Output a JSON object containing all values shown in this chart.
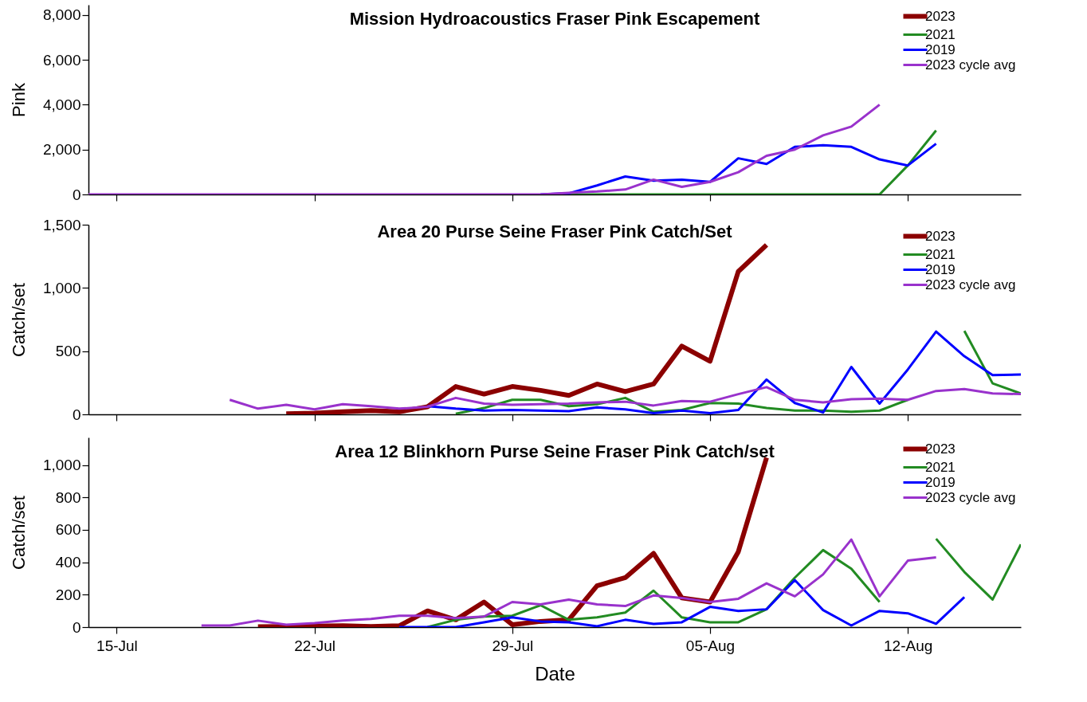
{
  "chart_data": [
    {
      "type": "line",
      "title": "Mission Hydroacoustics Fraser Pink Escapement",
      "ylabel": "Pink",
      "legend": "top right",
      "grid": false,
      "tick_labels": "y",
      "x": [
        "--07-14",
        "--07-15",
        "--07-16",
        "--07-17",
        "--07-18",
        "--07-19",
        "--07-20",
        "--07-21",
        "--07-22",
        "--07-23",
        "--07-24",
        "--07-25",
        "--07-26",
        "--07-27",
        "--07-28",
        "--07-29",
        "--07-30",
        "--07-31",
        "--08-01",
        "--08-02",
        "--08-03",
        "--08-04",
        "--08-05",
        "--08-06",
        "--08-07",
        "--08-08",
        "--08-09",
        "--08-10",
        "--08-11",
        "--08-12",
        "--08-13"
      ],
      "xlim": [
        "--07-14",
        "--08-16"
      ],
      "xticks": [
        {
          "value": "--07-15",
          "label": null
        },
        {
          "value": "--07-22",
          "label": null
        },
        {
          "value": "--07-29",
          "label": null
        },
        {
          "value": "--08-05",
          "label": null
        },
        {
          "value": "--08-12",
          "label": null
        }
      ],
      "ylim": [
        0,
        8450
      ],
      "yticks": [
        {
          "value": 0,
          "label": "0"
        },
        {
          "value": 2000,
          "label": "2,000"
        },
        {
          "value": 4000,
          "label": "4,000"
        },
        {
          "value": 6000,
          "label": "6,000"
        },
        {
          "value": 8000,
          "label": "8,000"
        }
      ],
      "series": [
        {
          "name": "2023",
          "color": "#8b0000",
          "values": [
            null,
            null,
            null,
            null,
            null,
            null,
            null,
            null,
            null,
            null,
            null,
            null,
            null,
            null,
            null,
            null,
            null,
            null,
            null,
            null,
            null,
            null,
            null,
            null,
            null,
            null,
            null,
            null,
            null,
            null,
            null
          ]
        },
        {
          "name": "2021",
          "color": "#228b22",
          "values": [
            null,
            null,
            null,
            null,
            null,
            null,
            null,
            null,
            null,
            null,
            null,
            null,
            null,
            null,
            null,
            null,
            null,
            0,
            0,
            0,
            0,
            0,
            0,
            0,
            0,
            0,
            0,
            0,
            0,
            1290,
            2850
          ]
        },
        {
          "name": "2019",
          "color": "#0000ff",
          "values": [
            null,
            null,
            null,
            null,
            null,
            null,
            null,
            null,
            null,
            null,
            null,
            null,
            null,
            null,
            null,
            null,
            0,
            50,
            400,
            800,
            610,
            660,
            560,
            1610,
            1360,
            2120,
            2190,
            2120,
            1560,
            1290,
            2260
          ]
        },
        {
          "name": "2023 cycle avg",
          "color": "#9932cc",
          "values": [
            0,
            0,
            0,
            0,
            0,
            0,
            0,
            0,
            0,
            0,
            0,
            0,
            0,
            0,
            0,
            0,
            0,
            70,
            130,
            220,
            660,
            340,
            560,
            990,
            1720,
            2000,
            2630,
            3020,
            4000,
            null,
            null
          ]
        }
      ]
    },
    {
      "type": "line",
      "title": "Area 20 Purse Seine Fraser Pink Catch/Set",
      "ylabel": "Catch/set",
      "legend": "top right",
      "grid": false,
      "tick_labels": "y",
      "x": [
        "--07-19",
        "--07-20",
        "--07-21",
        "--07-22",
        "--07-23",
        "--07-24",
        "--07-25",
        "--07-26",
        "--07-27",
        "--07-28",
        "--07-29",
        "--07-30",
        "--07-31",
        "--08-01",
        "--08-02",
        "--08-03",
        "--08-04",
        "--08-05",
        "--08-06",
        "--08-07",
        "--08-08",
        "--08-09",
        "--08-10",
        "--08-11",
        "--08-12",
        "--08-13",
        "--08-14",
        "--08-15",
        "--08-16"
      ],
      "xlim": [
        "--07-14",
        "--08-16"
      ],
      "xticks": [
        {
          "value": "--07-15",
          "label": null
        },
        {
          "value": "--07-22",
          "label": null
        },
        {
          "value": "--07-29",
          "label": null
        },
        {
          "value": "--08-05",
          "label": null
        },
        {
          "value": "--08-12",
          "label": null
        }
      ],
      "ylim": [
        0,
        1500
      ],
      "yticks": [
        {
          "value": 0,
          "label": "0"
        },
        {
          "value": 500,
          "label": "500"
        },
        {
          "value": 1000,
          "label": "1,000"
        },
        {
          "value": 1500,
          "label": "1,500"
        }
      ],
      "series": [
        {
          "name": "2023",
          "color": "#8b0000",
          "values": [
            null,
            null,
            5,
            10,
            20,
            30,
            20,
            60,
            220,
            160,
            220,
            190,
            150,
            240,
            180,
            240,
            540,
            420,
            1130,
            1340,
            null,
            null,
            null,
            null,
            null,
            null,
            null,
            null,
            null
          ]
        },
        {
          "name": "2021",
          "color": "#228b22",
          "values": [
            null,
            null,
            null,
            null,
            null,
            null,
            null,
            null,
            5,
            50,
            115,
            115,
            65,
            80,
            130,
            20,
            35,
            90,
            85,
            50,
            30,
            30,
            20,
            30,
            115,
            null,
            660,
            245,
            165
          ]
        },
        {
          "name": "2019",
          "color": "#0000ff",
          "values": [
            null,
            null,
            null,
            null,
            null,
            null,
            null,
            65,
            45,
            30,
            35,
            30,
            25,
            55,
            40,
            10,
            30,
            10,
            35,
            275,
            90,
            15,
            375,
            85,
            355,
            655,
            460,
            310,
            315
          ]
        },
        {
          "name": "2023 cycle avg",
          "color": "#9932cc",
          "values": [
            115,
            45,
            75,
            40,
            80,
            65,
            45,
            60,
            130,
            85,
            75,
            80,
            85,
            95,
            100,
            70,
            105,
            100,
            160,
            215,
            115,
            95,
            120,
            125,
            115,
            185,
            200,
            165,
            160
          ]
        }
      ]
    },
    {
      "type": "line",
      "title": "Area 12 Blinkhorn Purse Seine Fraser Pink Catch/set",
      "xlabel": "Date",
      "ylabel": "Catch/set",
      "legend": "top right",
      "grid": false,
      "x": [
        "--07-18",
        "--07-19",
        "--07-20",
        "--07-21",
        "--07-22",
        "--07-23",
        "--07-24",
        "--07-25",
        "--07-26",
        "--07-27",
        "--07-28",
        "--07-29",
        "--07-30",
        "--07-31",
        "--08-01",
        "--08-02",
        "--08-03",
        "--08-04",
        "--08-05",
        "--08-06",
        "--08-07",
        "--08-08",
        "--08-09",
        "--08-10",
        "--08-11",
        "--08-12",
        "--08-13",
        "--08-14",
        "--08-15",
        "--08-16"
      ],
      "xlim": [
        "--07-14",
        "--08-16"
      ],
      "xticks": [
        {
          "value": "--07-15",
          "label": "15-Jul"
        },
        {
          "value": "--07-22",
          "label": "22-Jul"
        },
        {
          "value": "--07-29",
          "label": "29-Jul"
        },
        {
          "value": "--08-05",
          "label": "05-Aug"
        },
        {
          "value": "--08-12",
          "label": "12-Aug"
        }
      ],
      "ylim": [
        0,
        1170
      ],
      "yticks": [
        {
          "value": 0,
          "label": "0"
        },
        {
          "value": 200,
          "label": "200"
        },
        {
          "value": 400,
          "label": "400"
        },
        {
          "value": 600,
          "label": "600"
        },
        {
          "value": 800,
          "label": "800"
        },
        {
          "value": 1000,
          "label": "1,000"
        }
      ],
      "series": [
        {
          "name": "2023",
          "color": "#8b0000",
          "values": [
            null,
            null,
            2,
            4,
            6,
            8,
            4,
            8,
            100,
            45,
            155,
            15,
            35,
            45,
            255,
            305,
            455,
            180,
            155,
            465,
            1045,
            null,
            null,
            null,
            null,
            null,
            null,
            null,
            null,
            null
          ]
        },
        {
          "name": "2021",
          "color": "#228b22",
          "values": [
            null,
            null,
            null,
            null,
            null,
            null,
            null,
            null,
            0,
            45,
            65,
            70,
            135,
            45,
            60,
            90,
            225,
            60,
            30,
            30,
            110,
            305,
            475,
            360,
            155,
            null,
            545,
            340,
            170,
            510
          ]
        },
        {
          "name": "2019",
          "color": "#0000ff",
          "values": [
            null,
            null,
            null,
            null,
            null,
            null,
            null,
            0,
            0,
            0,
            30,
            60,
            35,
            30,
            5,
            45,
            20,
            30,
            125,
            100,
            110,
            290,
            105,
            10,
            100,
            85,
            20,
            185,
            null,
            null
          ]
        },
        {
          "name": "2023 cycle avg",
          "color": "#9932cc",
          "values": [
            10,
            10,
            40,
            15,
            25,
            40,
            50,
            70,
            70,
            55,
            65,
            155,
            140,
            170,
            140,
            130,
            195,
            180,
            155,
            175,
            270,
            190,
            325,
            540,
            190,
            410,
            430,
            null,
            null,
            null
          ]
        }
      ]
    }
  ]
}
